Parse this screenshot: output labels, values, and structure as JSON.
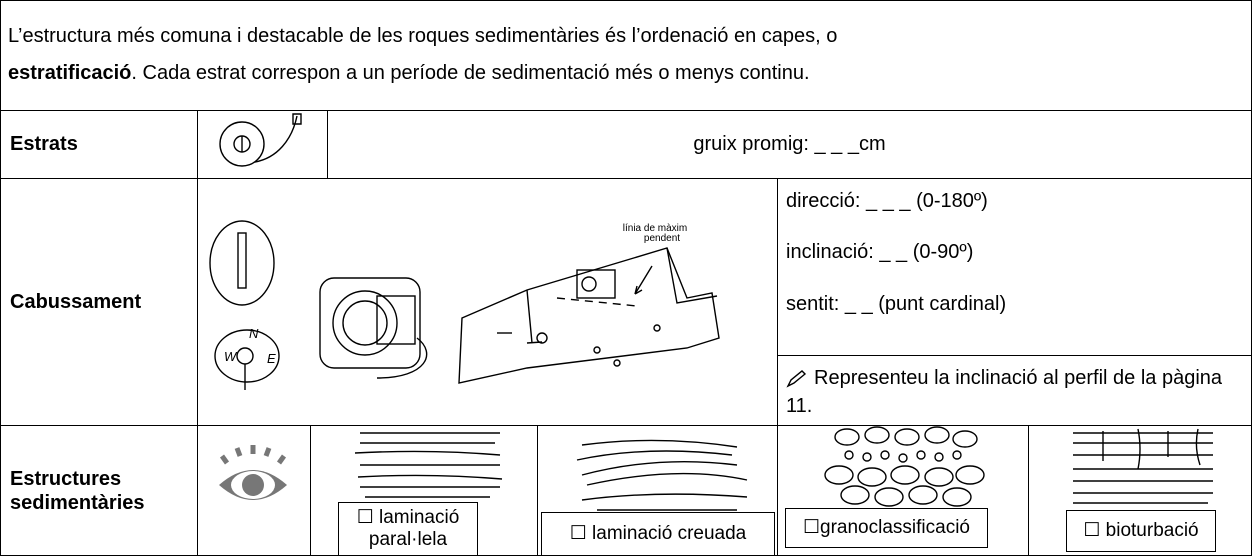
{
  "intro": {
    "text_1": "L’estructura més comuna i destacable de les roques sedimentàries és l’ordenació en capes, o",
    "bold": "estratificació",
    "text_2": ". Cada estrat correspon a un període de sedimentació més o menys continu."
  },
  "table": {
    "rows": [
      {
        "label": "Estrats",
        "value": "gruix promig: _ _ _cm"
      },
      {
        "label": "Cabussament",
        "fields": [
          "direcció: _ _ _ (0-180º)",
          "inclinació: _ _ (0-90º)",
          "sentit: _ _ (punt cardinal)"
        ],
        "instruction": "Representeu la inclinació al perfil de la pàgina 11.",
        "drawing_label": [
          "línia de màxim",
          "pendent"
        ],
        "compass_labels": [
          "W",
          "N",
          "E"
        ]
      },
      {
        "label": "Estructures sedimentàries",
        "options": [
          "☐ laminació paral·lela",
          "☐ laminació creuada",
          "☐granoclassificació",
          "☐ bioturbació"
        ]
      }
    ]
  }
}
